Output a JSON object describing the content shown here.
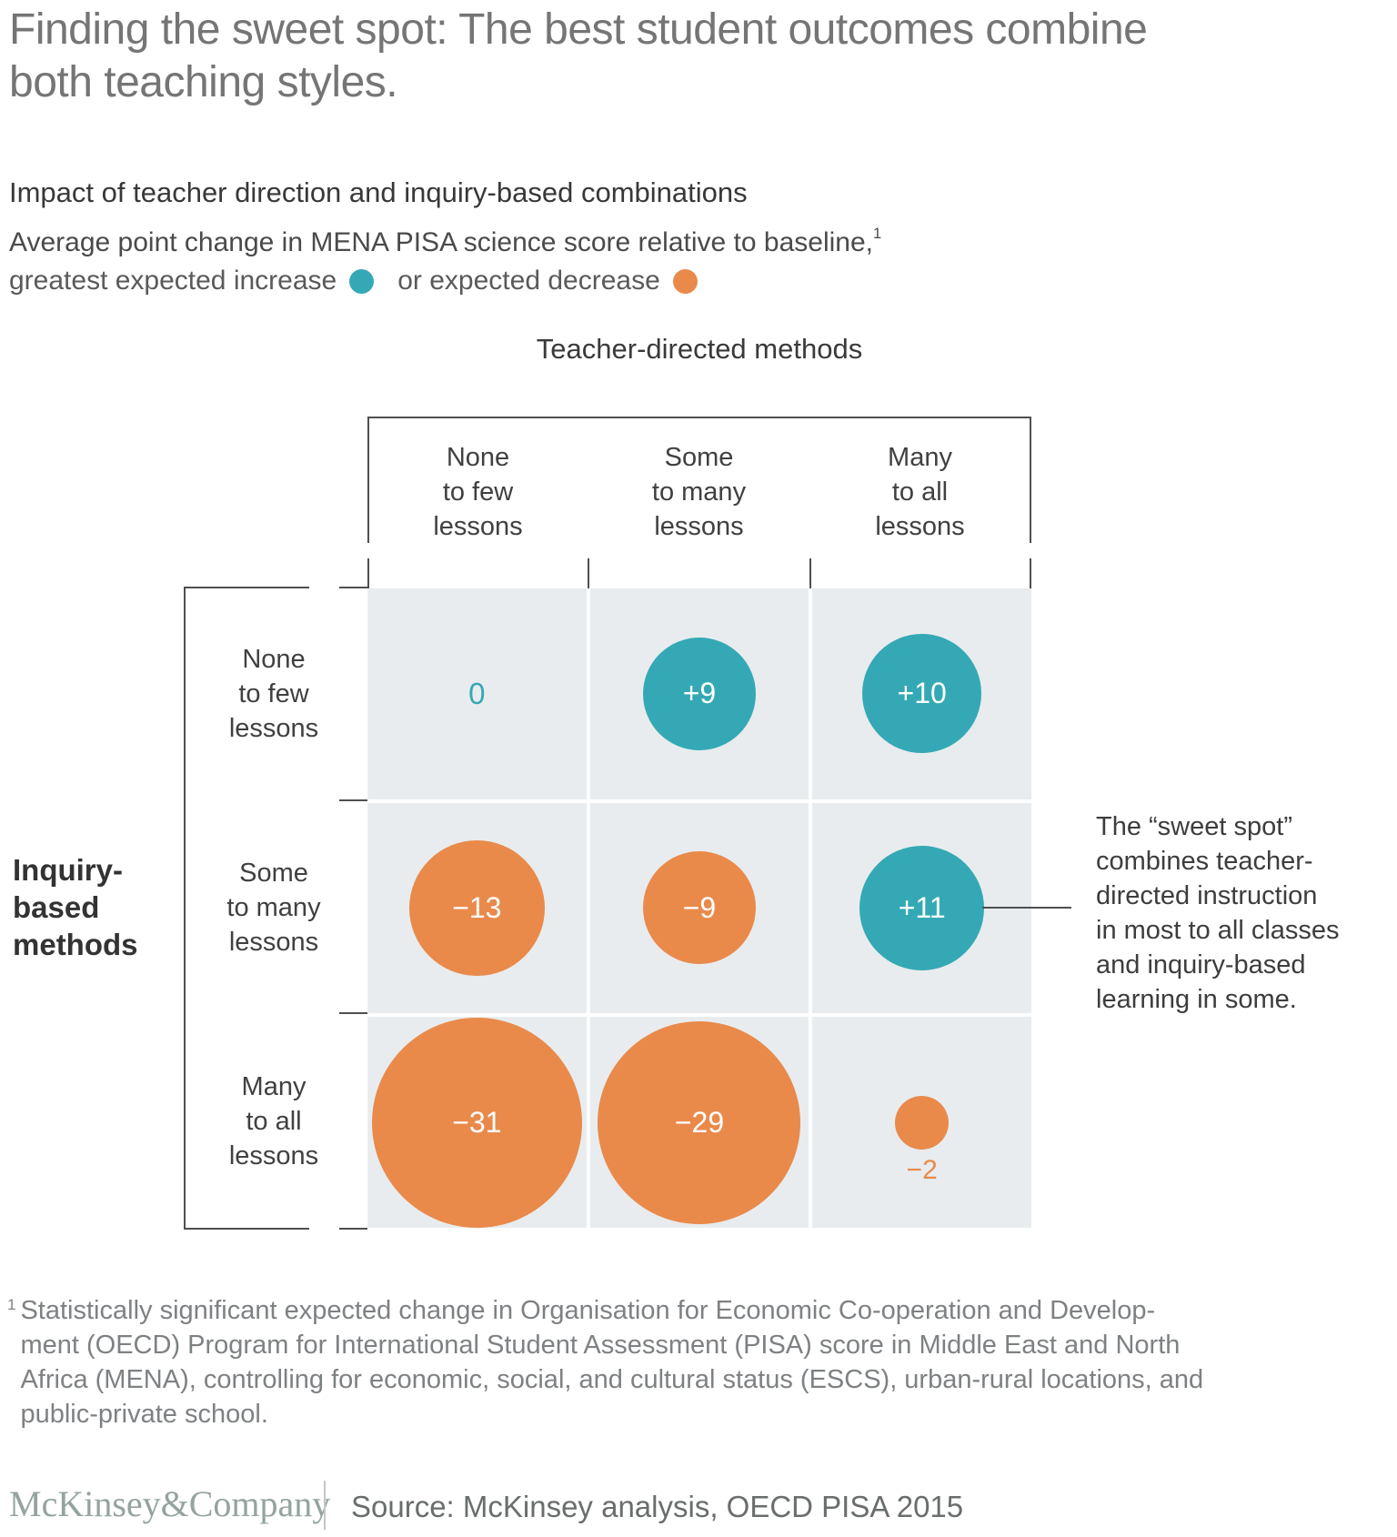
{
  "title": "Finding the sweet spot: The best student outcomes combine\nboth teaching styles.",
  "heading": "Impact of teacher direction and inquiry-based combinations",
  "subtitle": {
    "text": "Average point change in MENA PISA science score relative to baseline,",
    "superscript": "1"
  },
  "legend": {
    "increase_label": "greatest expected increase",
    "decrease_label": "or expected decrease"
  },
  "colors": {
    "increase": "#34a9b5",
    "decrease": "#e98a4b",
    "cell_bg": "#e8ecee",
    "line": "#4f4f4f"
  },
  "chart_data": {
    "type": "bubble-matrix",
    "x_axis_title": "Teacher-directed methods",
    "y_axis_title": "Inquiry-\nbased\nmethods",
    "col_headers": [
      "None\nto few\nlessons",
      "Some\nto many\nlessons",
      "Many\nto all\nlessons"
    ],
    "row_headers": [
      "None\nto few\nlessons",
      "Some\nto many\nlessons",
      "Many\nto all\nlessons"
    ],
    "values": [
      [
        0,
        9,
        10
      ],
      [
        -13,
        -9,
        11
      ],
      [
        -31,
        -29,
        -2
      ]
    ],
    "labels": [
      [
        "0",
        "+9",
        "+10"
      ],
      [
        "−13",
        "−9",
        "+11"
      ],
      [
        "−31",
        "−29",
        "−2"
      ]
    ],
    "radius_scale": 20.7,
    "labels_outside": [
      [
        2,
        2
      ]
    ],
    "annotation": {
      "text": "The “sweet spot”\ncombines teacher-\ndirected instruction\nin most to all classes\nand inquiry-based\nlearning in some.",
      "target_row": 1,
      "target_col": 2
    }
  },
  "footnote": {
    "superscript": "1",
    "text": "Statistically significant expected change in Organisation for Economic Co-operation and Develop-\nment (OECD) Program for International Student Assessment (PISA) score in Middle East and North\nAfrica (MENA), controlling for economic, social, and cultural status (ESCS), urban-rural locations, and\npublic-private school."
  },
  "footer": {
    "logo": "McKinsey&Company",
    "source": "Source: McKinsey analysis, OECD PISA 2015"
  }
}
